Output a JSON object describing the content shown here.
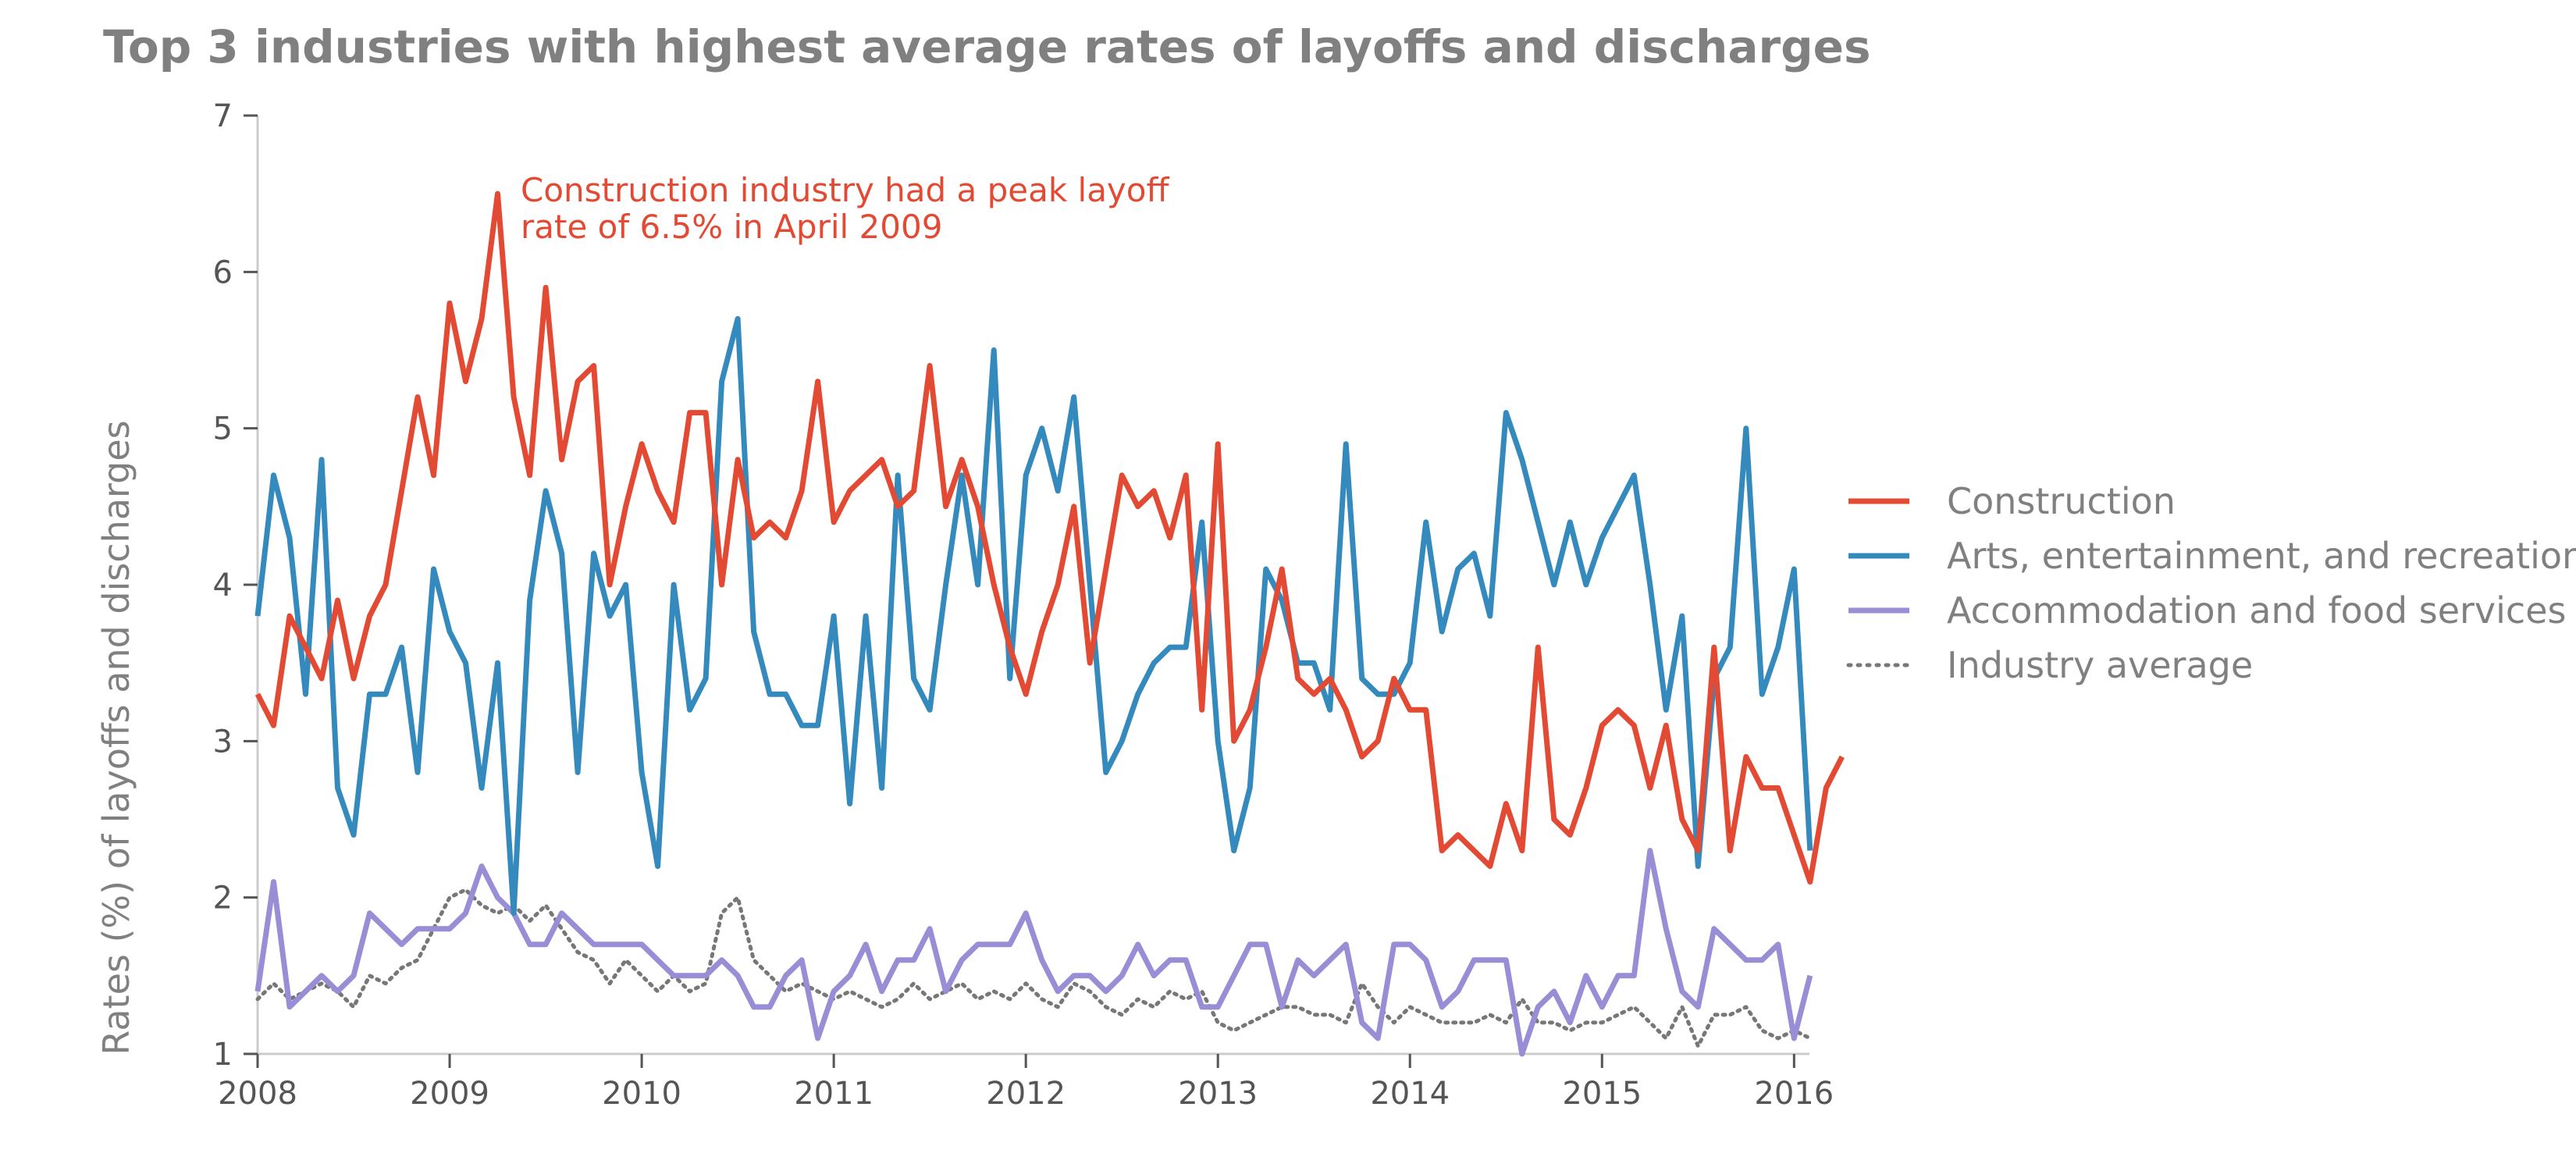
{
  "chart_data": {
    "type": "line",
    "title": "Top 3 industries with highest average rates of layoffs and discharges",
    "xlabel": "",
    "ylabel": "Rates (%) of layoffs and discharges",
    "xlim": [
      2008,
      2016.08
    ],
    "ylim": [
      1,
      7
    ],
    "x_ticks": [
      "2008",
      "2009",
      "2010",
      "2011",
      "2012",
      "2013",
      "2014",
      "2015",
      "2016"
    ],
    "y_ticks": [
      "1",
      "2",
      "3",
      "4",
      "5",
      "6",
      "7"
    ],
    "grid": false,
    "legend_position": "right",
    "x_start": "2008-01",
    "x_step": "1 month",
    "annotation": {
      "lines": [
        "Construction industry had a peak layoff",
        "rate of 6.5% in April 2009"
      ],
      "color": "#E24A33"
    },
    "series": [
      {
        "name": "Construction",
        "color": "#E24A33",
        "style": "solid",
        "values": [
          3.3,
          3.1,
          3.8,
          3.6,
          3.4,
          3.9,
          3.4,
          3.8,
          4.0,
          4.6,
          5.2,
          4.7,
          5.8,
          5.3,
          5.7,
          6.5,
          5.2,
          4.7,
          5.9,
          4.8,
          5.3,
          5.4,
          4.0,
          4.5,
          4.9,
          4.6,
          4.4,
          5.1,
          5.1,
          4.0,
          4.8,
          4.3,
          4.4,
          4.3,
          4.6,
          5.3,
          4.4,
          4.6,
          4.7,
          4.8,
          4.5,
          4.6,
          5.4,
          4.5,
          4.8,
          4.5,
          4.0,
          3.6,
          3.3,
          3.7,
          4.0,
          4.5,
          3.5,
          4.1,
          4.7,
          4.5,
          4.6,
          4.3,
          4.7,
          3.2,
          4.9,
          3.0,
          3.2,
          3.6,
          4.1,
          3.4,
          3.3,
          3.4,
          3.2,
          2.9,
          3.0,
          3.4,
          3.2,
          3.2,
          2.3,
          2.4,
          2.3,
          2.2,
          2.6,
          2.3,
          3.6,
          2.5,
          2.4,
          2.7,
          3.1,
          3.2,
          3.1,
          2.7,
          3.1,
          2.5,
          2.3,
          3.6,
          2.3,
          2.9,
          2.7,
          2.7,
          2.4,
          2.1,
          2.7,
          2.9
        ]
      },
      {
        "name": "Arts, entertainment, and recreation",
        "color": "#348ABD",
        "style": "solid",
        "values": [
          3.8,
          4.7,
          4.3,
          3.3,
          4.8,
          2.7,
          2.4,
          3.3,
          3.3,
          3.6,
          2.8,
          4.1,
          3.7,
          3.5,
          2.7,
          3.5,
          1.9,
          3.9,
          4.6,
          4.2,
          2.8,
          4.2,
          3.8,
          4.0,
          2.8,
          2.2,
          4.0,
          3.2,
          3.4,
          5.3,
          5.7,
          3.7,
          3.3,
          3.3,
          3.1,
          3.1,
          3.8,
          2.6,
          3.8,
          2.7,
          4.7,
          3.4,
          3.2,
          4.0,
          4.7,
          4.0,
          5.5,
          3.4,
          4.7,
          5.0,
          4.6,
          5.2,
          4.0,
          2.8,
          3.0,
          3.3,
          3.5,
          3.6,
          3.6,
          4.4,
          3.0,
          2.3,
          2.7,
          4.1,
          3.9,
          3.5,
          3.5,
          3.2,
          4.9,
          3.4,
          3.3,
          3.3,
          3.5,
          4.4,
          3.7,
          4.1,
          4.2,
          3.8,
          5.1,
          4.8,
          4.4,
          4.0,
          4.4,
          4.0,
          4.3,
          4.5,
          4.7,
          4.0,
          3.2,
          3.8,
          2.2,
          3.4,
          3.6,
          5.0,
          3.3,
          3.6,
          4.1,
          2.3
        ]
      },
      {
        "name": "Accommodation and food services",
        "color": "#988ED5",
        "style": "solid",
        "values": [
          1.4,
          2.1,
          1.3,
          1.4,
          1.5,
          1.4,
          1.5,
          1.9,
          1.8,
          1.7,
          1.8,
          1.8,
          1.8,
          1.9,
          2.2,
          2.0,
          1.9,
          1.7,
          1.7,
          1.9,
          1.8,
          1.7,
          1.7,
          1.7,
          1.7,
          1.6,
          1.5,
          1.5,
          1.5,
          1.6,
          1.5,
          1.3,
          1.3,
          1.5,
          1.6,
          1.1,
          1.4,
          1.5,
          1.7,
          1.4,
          1.6,
          1.6,
          1.8,
          1.4,
          1.6,
          1.7,
          1.7,
          1.7,
          1.9,
          1.6,
          1.4,
          1.5,
          1.5,
          1.4,
          1.5,
          1.7,
          1.5,
          1.6,
          1.6,
          1.3,
          1.3,
          1.5,
          1.7,
          1.7,
          1.3,
          1.6,
          1.5,
          1.6,
          1.7,
          1.2,
          1.1,
          1.7,
          1.7,
          1.6,
          1.3,
          1.4,
          1.6,
          1.6,
          1.6,
          1.0,
          1.3,
          1.4,
          1.2,
          1.5,
          1.3,
          1.5,
          1.5,
          2.3,
          1.8,
          1.4,
          1.3,
          1.8,
          1.7,
          1.6,
          1.6,
          1.7,
          1.1,
          1.5
        ]
      },
      {
        "name": "Industry average",
        "color": "#777777",
        "style": "dotted",
        "values": [
          1.35,
          1.45,
          1.35,
          1.4,
          1.45,
          1.4,
          1.3,
          1.5,
          1.45,
          1.55,
          1.6,
          1.8,
          2.0,
          2.05,
          1.95,
          1.9,
          1.95,
          1.85,
          1.95,
          1.8,
          1.65,
          1.6,
          1.45,
          1.6,
          1.5,
          1.4,
          1.5,
          1.4,
          1.45,
          1.9,
          2.0,
          1.6,
          1.5,
          1.4,
          1.45,
          1.4,
          1.35,
          1.4,
          1.35,
          1.3,
          1.35,
          1.45,
          1.35,
          1.4,
          1.45,
          1.35,
          1.4,
          1.35,
          1.45,
          1.35,
          1.3,
          1.45,
          1.4,
          1.3,
          1.25,
          1.35,
          1.3,
          1.4,
          1.35,
          1.4,
          1.2,
          1.15,
          1.2,
          1.25,
          1.3,
          1.3,
          1.25,
          1.25,
          1.2,
          1.45,
          1.3,
          1.2,
          1.3,
          1.25,
          1.2,
          1.2,
          1.2,
          1.25,
          1.2,
          1.35,
          1.2,
          1.2,
          1.15,
          1.2,
          1.2,
          1.25,
          1.3,
          1.2,
          1.1,
          1.3,
          1.05,
          1.25,
          1.25,
          1.3,
          1.15,
          1.1,
          1.15,
          1.1
        ]
      }
    ]
  }
}
